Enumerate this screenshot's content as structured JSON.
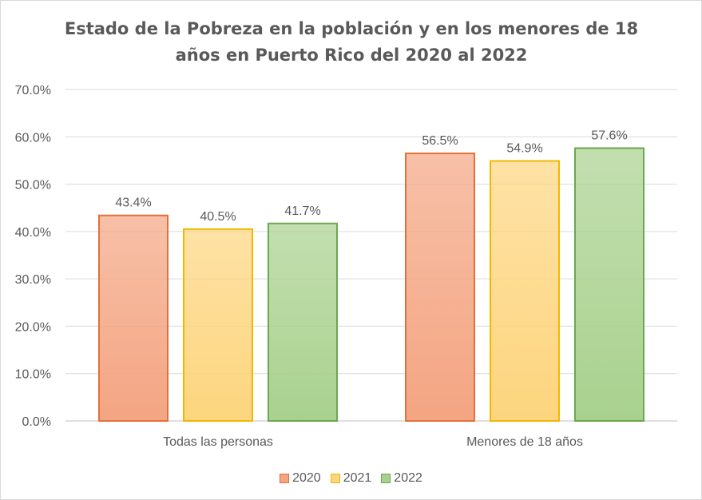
{
  "chart_data": {
    "type": "bar",
    "title": "Estado de la Pobreza en la población y en los menores de 18 años en Puerto Rico del 2020 al 2022",
    "title_lines": [
      "Estado de la Pobreza en la población y en los menores de 18",
      "años en Puerto Rico del 2020 al 2022"
    ],
    "categories": [
      "Todas las personas",
      "Menores de 18 años"
    ],
    "series": [
      {
        "name": "2020",
        "values": [
          43.4,
          56.5
        ],
        "labels": [
          "43.4%",
          "56.5%"
        ],
        "color": "#f4a582",
        "edge": "#e2703a"
      },
      {
        "name": "2021",
        "values": [
          40.5,
          54.9
        ],
        "labels": [
          "40.5%",
          "54.9%"
        ],
        "color": "#fdd57e",
        "edge": "#f2b800"
      },
      {
        "name": "2022",
        "values": [
          41.7,
          57.6
        ],
        "labels": [
          "41.7%",
          "57.6%"
        ],
        "color": "#a9d18e",
        "edge": "#6aa84f"
      }
    ],
    "ylim": [
      0,
      70
    ],
    "yticks": [
      "0.0%",
      "10.0%",
      "20.0%",
      "30.0%",
      "40.0%",
      "50.0%",
      "60.0%",
      "70.0%"
    ],
    "grid": true,
    "legend_position": "bottom"
  }
}
